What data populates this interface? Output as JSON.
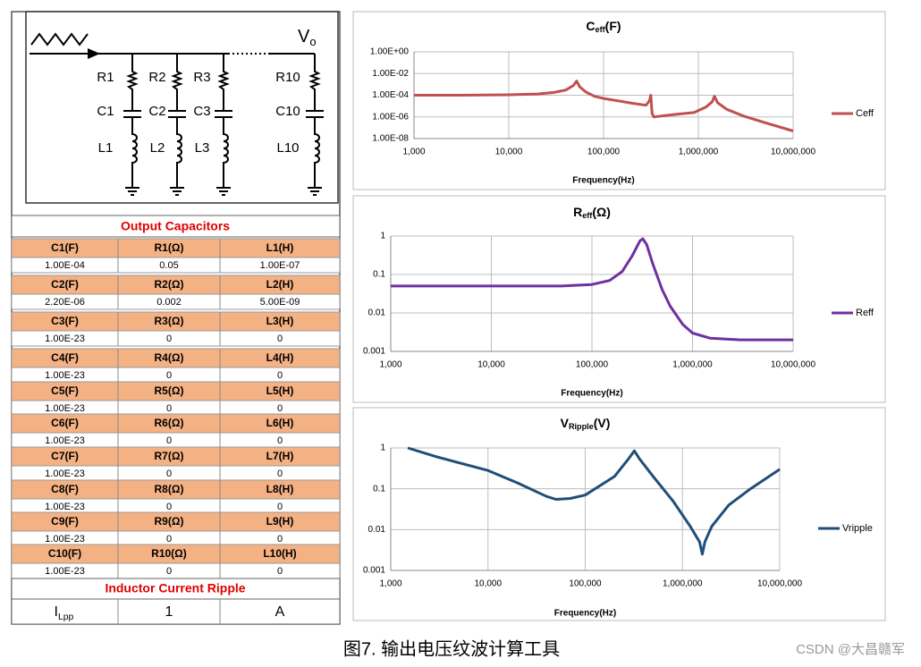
{
  "diagram": {
    "output": {
      "text": "V",
      "sub": "o"
    },
    "branches": [
      {
        "r": "R1",
        "c": "C1",
        "l": "L1"
      },
      {
        "r": "R2",
        "c": "C2",
        "l": "L2"
      },
      {
        "r": "R3",
        "c": "C3",
        "l": "L3"
      },
      {
        "r": "R10",
        "c": "C10",
        "l": "L10"
      }
    ]
  },
  "table": {
    "title": "Output Capacitors",
    "groups": [
      {
        "header": [
          "C1(F)",
          "R1(Ω)",
          "L1(H)"
        ],
        "values": [
          "1.00E-04",
          "0.05",
          "1.00E-07"
        ]
      },
      {
        "header": [
          "C2(F)",
          "R2(Ω)",
          "L2(H)"
        ],
        "values": [
          "2.20E-06",
          "0.002",
          "5.00E-09"
        ]
      },
      {
        "header": [
          "C3(F)",
          "R3(Ω)",
          "L3(H)"
        ],
        "values": [
          "1.00E-23",
          "0",
          "0"
        ]
      },
      {
        "header": [
          "C4(F)",
          "R4(Ω)",
          "L4(H)"
        ],
        "values": [
          "1.00E-23",
          "0",
          "0"
        ]
      },
      {
        "header": [
          "C5(F)",
          "R5(Ω)",
          "L5(H)"
        ],
        "values": [
          "1.00E-23",
          "0",
          "0"
        ]
      },
      {
        "header": [
          "C6(F)",
          "R6(Ω)",
          "L6(H)"
        ],
        "values": [
          "1.00E-23",
          "0",
          "0"
        ]
      },
      {
        "header": [
          "C7(F)",
          "R7(Ω)",
          "L7(H)"
        ],
        "values": [
          "1.00E-23",
          "0",
          "0"
        ]
      },
      {
        "header": [
          "C8(F)",
          "R8(Ω)",
          "L8(H)"
        ],
        "values": [
          "1.00E-23",
          "0",
          "0"
        ]
      },
      {
        "header": [
          "C9(F)",
          "R9(Ω)",
          "L9(H)"
        ],
        "values": [
          "1.00E-23",
          "0",
          "0"
        ]
      },
      {
        "header": [
          "C10(F)",
          "R10(Ω)",
          "L10(H)"
        ],
        "values": [
          "1.00E-23",
          "0",
          "0"
        ]
      }
    ],
    "ripple_title": "Inductor Current Ripple",
    "ripple": {
      "label": {
        "text": "I",
        "sub": "Lpp"
      },
      "values": [
        1,
        "A"
      ]
    }
  },
  "chart_data": [
    {
      "type": "line",
      "title": {
        "text": "C",
        "sub": "eff",
        "unit": "(F)"
      },
      "x_label": "Frequency(Hz)",
      "log_x": true,
      "log_y": true,
      "grid": true,
      "legend": "right",
      "xlim": [
        1000,
        10000000
      ],
      "ylim": [
        1e-08,
        1
      ],
      "xticks": [
        {
          "value": 1000,
          "label": "1,000"
        },
        {
          "value": 10000,
          "label": "10,000"
        },
        {
          "value": 100000,
          "label": "100,000"
        },
        {
          "value": 1000000,
          "label": "1,000,000"
        },
        {
          "value": 10000000,
          "label": "10,000,000"
        }
      ],
      "yticks": [
        {
          "value": 1e-08,
          "label": "1.00E-08"
        },
        {
          "value": 1e-06,
          "label": "1.00E-06"
        },
        {
          "value": 0.0001,
          "label": "1.00E-04"
        },
        {
          "value": 0.01,
          "label": "1.00E-02"
        },
        {
          "value": 1,
          "label": "1.00E+00"
        }
      ],
      "x": [
        1000,
        3000,
        10000,
        20000,
        30000,
        40000,
        48000,
        52000,
        56000,
        65000,
        80000,
        100000,
        150000,
        200000,
        280000,
        305000,
        315000,
        325000,
        340000,
        400000,
        600000,
        900000,
        1200000,
        1400000,
        1480000,
        1600000,
        2000000,
        3000000,
        5000000,
        10000000
      ],
      "series": [
        {
          "name": "Ceff",
          "color": "#c0504d",
          "values": [
            0.0001,
            0.0001,
            0.00011,
            0.00013,
            0.00018,
            0.0003,
            0.0008,
            0.002,
            0.0006,
            0.0002,
            8e-05,
            5e-05,
            2.8e-05,
            1.8e-05,
            1.2e-05,
            3e-05,
            0.0001,
            2e-06,
            1e-06,
            1.2e-06,
            1.8e-06,
            2.5e-06,
            8e-06,
            2.5e-05,
            8e-05,
            2e-05,
            5e-06,
            1.2e-06,
            3e-07,
            5e-08
          ]
        }
      ]
    },
    {
      "type": "line",
      "title": {
        "text": "R",
        "sub": "eff",
        "unit": "(Ω)"
      },
      "x_label": "Frequency(Hz)",
      "log_x": true,
      "log_y": true,
      "grid": true,
      "legend": "right",
      "xlim": [
        1000,
        10000000
      ],
      "ylim": [
        0.001,
        1
      ],
      "xticks": [
        {
          "value": 1000,
          "label": "1,000"
        },
        {
          "value": 10000,
          "label": "10,000"
        },
        {
          "value": 100000,
          "label": "100,000"
        },
        {
          "value": 1000000,
          "label": "1,000,000"
        },
        {
          "value": 10000000,
          "label": "10,000,000"
        }
      ],
      "yticks": [
        0.001,
        0.01,
        0.1,
        1
      ],
      "x": [
        1000,
        10000,
        50000,
        100000,
        150000,
        200000,
        250000,
        300000,
        320000,
        350000,
        400000,
        500000,
        600000,
        800000,
        1000000,
        1500000,
        3000000,
        10000000
      ],
      "series": [
        {
          "name": "Reff",
          "color": "#7030a0",
          "values": [
            0.05,
            0.05,
            0.05,
            0.055,
            0.07,
            0.12,
            0.3,
            0.75,
            0.85,
            0.6,
            0.2,
            0.04,
            0.015,
            0.005,
            0.003,
            0.0022,
            0.002,
            0.002
          ]
        }
      ]
    },
    {
      "type": "line",
      "title": {
        "text": "V",
        "sub": "Ripple",
        "unit": "(V)"
      },
      "x_label": "Frequency(Hz)",
      "log_x": true,
      "log_y": true,
      "grid": true,
      "legend": "right",
      "xlim": [
        1000,
        10000000
      ],
      "ylim": [
        0.001,
        1
      ],
      "xticks": [
        {
          "value": 1000,
          "label": "1,000"
        },
        {
          "value": 10000,
          "label": "10,000"
        },
        {
          "value": 100000,
          "label": "100,000"
        },
        {
          "value": 1000000,
          "label": "1,000,000"
        },
        {
          "value": 10000000,
          "label": "10,000,000"
        }
      ],
      "yticks": [
        0.001,
        0.01,
        0.1,
        1
      ],
      "x": [
        1500,
        3000,
        10000,
        20000,
        40000,
        50000,
        70000,
        100000,
        200000,
        280000,
        320000,
        360000,
        500000,
        800000,
        1200000,
        1500000,
        1600000,
        1700000,
        2000000,
        3000000,
        5000000,
        10000000
      ],
      "series": [
        {
          "name": "Vripple",
          "color": "#1f4e79",
          "values": [
            1,
            0.6,
            0.28,
            0.14,
            0.065,
            0.055,
            0.058,
            0.07,
            0.2,
            0.55,
            0.85,
            0.55,
            0.2,
            0.05,
            0.012,
            0.005,
            0.0025,
            0.005,
            0.012,
            0.04,
            0.1,
            0.3
          ]
        }
      ]
    }
  ],
  "caption": "图7. 输出电压纹波计算工具",
  "watermark": "CSDN @大昌赣军"
}
